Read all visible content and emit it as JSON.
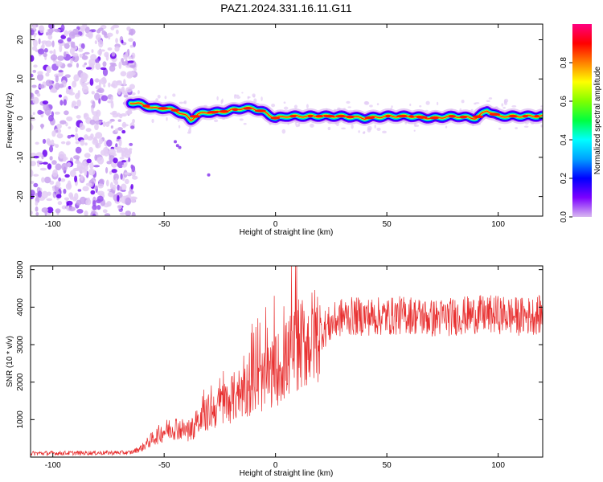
{
  "figure_title": "PAZ1.2024.331.16.11.G11",
  "chart_data": [
    {
      "type": "heatmap",
      "title": "PAZ1.2024.331.16.11.G11",
      "xlabel": "Height of straight line (km)",
      "ylabel": "Frequency (Hz)",
      "xlim": [
        -110,
        120
      ],
      "ylim": [
        -25,
        24
      ],
      "xticks": [
        -100,
        -50,
        0,
        50,
        100
      ],
      "yticks": [
        -20,
        -10,
        0,
        10,
        20
      ],
      "colorbar": {
        "label": "Normalized spectral amplitude",
        "range": [
          0,
          1
        ],
        "ticks": [
          0.0,
          0.2,
          0.4,
          0.6,
          0.8
        ],
        "colormap": [
          "#d8b8f0",
          "#7c00ff",
          "#0000ff",
          "#00a0ff",
          "#00ffff",
          "#00ff40",
          "#80ff00",
          "#ffff00",
          "#ff8000",
          "#ff0000",
          "#ff0080"
        ]
      },
      "noise_region_x": [
        -110,
        -63
      ],
      "ridge": {
        "x": [
          -65,
          -60,
          -55,
          -50,
          -45,
          -40,
          -38,
          -35,
          -30,
          -25,
          -20,
          -15,
          -10,
          -5,
          0,
          5,
          10,
          20,
          30,
          40,
          50,
          60,
          70,
          80,
          90,
          95,
          100,
          110,
          120
        ],
        "y": [
          4,
          3.5,
          2.5,
          2.5,
          2,
          0.5,
          -0.5,
          1,
          1.5,
          1.5,
          2,
          2.5,
          2.5,
          1.5,
          0,
          0.5,
          0.5,
          0.5,
          0.5,
          0,
          0.5,
          0.5,
          0,
          0.5,
          0,
          2,
          0.5,
          0.5,
          0.5
        ]
      }
    },
    {
      "type": "line",
      "xlabel": "Height of straight line (km)",
      "ylabel": "SNR (10 * v/v)",
      "xlim": [
        -110,
        120
      ],
      "ylim": [
        0,
        5100
      ],
      "xticks": [
        -100,
        -50,
        0,
        50,
        100
      ],
      "yticks": [
        1000,
        2000,
        3000,
        4000,
        5000
      ],
      "color": "#e83030",
      "trend": {
        "x": [
          -110,
          -65,
          -60,
          -55,
          -50,
          -45,
          -40,
          -35,
          -30,
          -25,
          -20,
          -15,
          -10,
          -5,
          0,
          5,
          10,
          15,
          20,
          25,
          30,
          40,
          50,
          60,
          70,
          80,
          90,
          100,
          110,
          120
        ],
        "y": [
          100,
          120,
          250,
          500,
          700,
          800,
          700,
          850,
          1200,
          1350,
          1550,
          1750,
          1950,
          2050,
          2300,
          2600,
          2950,
          3100,
          3350,
          3550,
          3750,
          3750,
          3750,
          3800,
          3700,
          3750,
          3800,
          3800,
          3750,
          3800
        ]
      }
    }
  ]
}
